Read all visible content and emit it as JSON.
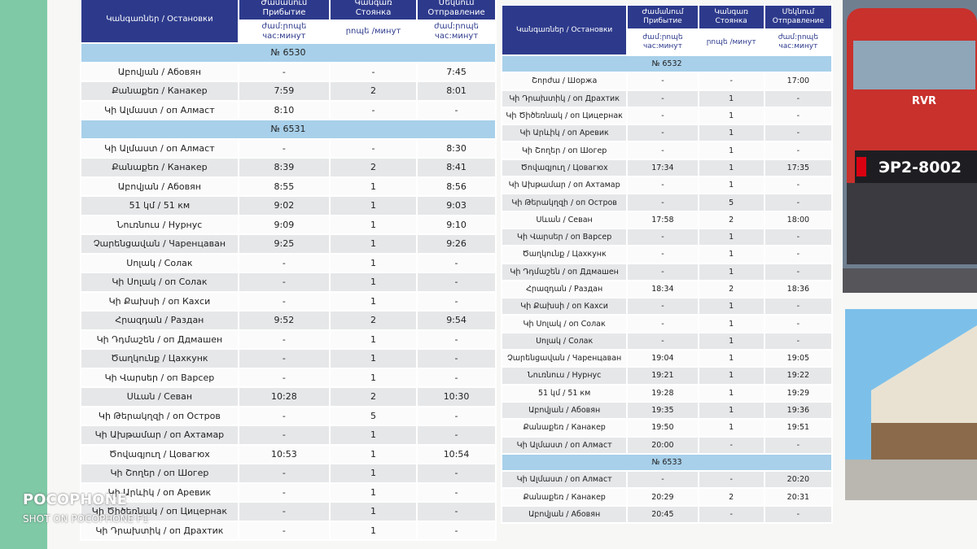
{
  "tables": [
    {
      "header": [
        [
          "Կանգառներ / Остановки"
        ],
        [
          "Ժամանում",
          "Прибытие"
        ],
        [
          "Կանգառ",
          "Стоянка"
        ],
        [
          "Մեկնում",
          "Отправление"
        ]
      ],
      "subheader": [
        [
          "ժամ:րոպե",
          "час:минут"
        ],
        [
          "րոպե /минут"
        ],
        [
          "ժամ:րոպե",
          "час:минут"
        ]
      ],
      "sections": [
        {
          "train": "№ 6530",
          "rows": [
            [
              "Աբովյան / Абовян",
              "-",
              "-",
              "7:45"
            ],
            [
              "Քանաքեռ / Канакер",
              "7:59",
              "2",
              "8:01"
            ],
            [
              "Կի Ալմաստ / оп Алмаст",
              "8:10",
              "-",
              "-"
            ]
          ]
        },
        {
          "train": "№ 6531",
          "rows": [
            [
              "Կի Ալմաստ / оп Алмаст",
              "-",
              "-",
              "8:30"
            ],
            [
              "Քանաքեռ / Канакер",
              "8:39",
              "2",
              "8:41"
            ],
            [
              "Աբովյան / Абовян",
              "8:55",
              "1",
              "8:56"
            ],
            [
              "51 կմ / 51 км",
              "9:02",
              "1",
              "9:03"
            ],
            [
              "Նուռնուս / Нурнус",
              "9:09",
              "1",
              "9:10"
            ],
            [
              "Չարենցավան / Чаренцаван",
              "9:25",
              "1",
              "9:26"
            ],
            [
              "Սոլակ / Солак",
              "-",
              "1",
              "-"
            ],
            [
              "Կի Սոլակ / оп Солак",
              "-",
              "1",
              "-"
            ],
            [
              "Կի Քախսի / оп Кахси",
              "-",
              "1",
              "-"
            ],
            [
              "Հրազդան / Раздан",
              "9:52",
              "2",
              "9:54"
            ],
            [
              "Կի Դդմաշեն / оп Ддмашен",
              "-",
              "1",
              "-"
            ],
            [
              "Ծաղկունք / Цахкунк",
              "-",
              "1",
              "-"
            ],
            [
              "Կի Վարսեր / оп Варсер",
              "-",
              "1",
              "-"
            ],
            [
              "Սևան / Севан",
              "10:28",
              "2",
              "10:30"
            ],
            [
              "Կի Թերակղզի / оп Остров",
              "-",
              "5",
              "-"
            ],
            [
              "Կի Ախթամար / оп Ахтамар",
              "-",
              "1",
              "-"
            ],
            [
              "Ծովագյուղ / Цовагюх",
              "10:53",
              "1",
              "10:54"
            ],
            [
              "Կի Շողեր / оп Шогер",
              "-",
              "1",
              "-"
            ],
            [
              "Կի Արևիկ / оп Аревик",
              "-",
              "1",
              "-"
            ],
            [
              "Կի Ծիծեռնակ / оп Цицернак",
              "-",
              "1",
              "-"
            ],
            [
              "Կի Դրախտիկ / оп Драхтик",
              "-",
              "1",
              "-"
            ]
          ]
        }
      ]
    },
    {
      "header": [
        [
          "Կանգառներ / Остановки"
        ],
        [
          "Ժամանում",
          "Прибытие"
        ],
        [
          "Կանգառ",
          "Стоянка"
        ],
        [
          "Մեկնում",
          "Отправление"
        ]
      ],
      "subheader": [
        [
          "ժամ:րոպե",
          "час:минут"
        ],
        [
          "րոպե /минут"
        ],
        [
          "ժամ:րոպե",
          "час:минут"
        ]
      ],
      "sections": [
        {
          "train": "№ 6532",
          "rows": [
            [
              "Շորժա / Шоржа",
              "-",
              "-",
              "17:00"
            ],
            [
              "Կի Դրախտիկ / оп Драхтик",
              "-",
              "1",
              "-"
            ],
            [
              "Կի Ծիծեռնակ / оп Цицернак",
              "-",
              "1",
              "-"
            ],
            [
              "Կի Արևիկ / оп Аревик",
              "-",
              "1",
              "-"
            ],
            [
              "Կի Շողեր / оп Шогер",
              "-",
              "1",
              "-"
            ],
            [
              "Ծովագյուղ / Цовагюх",
              "17:34",
              "1",
              "17:35"
            ],
            [
              "Կի Ախթամար / оп Ахтамар",
              "-",
              "1",
              "-"
            ],
            [
              "Կի Թերակղզի / оп Остров",
              "-",
              "5",
              "-"
            ],
            [
              "Սևան / Севан",
              "17:58",
              "2",
              "18:00"
            ],
            [
              "Կի Վարսեր / оп Варсер",
              "-",
              "1",
              "-"
            ],
            [
              "Ծաղկունք / Цахкунк",
              "-",
              "1",
              "-"
            ],
            [
              "Կի Դդմաշեն / оп Ддмашен",
              "-",
              "1",
              "-"
            ],
            [
              "Հրազդան / Раздан",
              "18:34",
              "2",
              "18:36"
            ],
            [
              "Կի Քախսի / оп Кахси",
              "-",
              "1",
              "-"
            ],
            [
              "Կի Սոլակ / оп Солак",
              "-",
              "1",
              "-"
            ],
            [
              "Սոլակ / Солак",
              "-",
              "1",
              "-"
            ],
            [
              "Չարենցավան / Чаренцаван",
              "19:04",
              "1",
              "19:05"
            ],
            [
              "Նուռնուս / Нурнус",
              "19:21",
              "1",
              "19:22"
            ],
            [
              "51 կմ / 51 км",
              "19:28",
              "1",
              "19:29"
            ],
            [
              "Աբովյան / Абовян",
              "19:35",
              "1",
              "19:36"
            ],
            [
              "Քանաքեռ / Канакер",
              "19:50",
              "1",
              "19:51"
            ],
            [
              "Կի Ալմաստ / оп Алмаст",
              "20:00",
              "-",
              "-"
            ]
          ]
        },
        {
          "train": "№ 6533",
          "rows": [
            [
              "Կի Ալմաստ / оп Алмаст",
              "-",
              "-",
              "20:20"
            ],
            [
              "Քանաքեռ / Канакер",
              "20:29",
              "2",
              "20:31"
            ],
            [
              "Աբովյան / Абовян",
              "20:45",
              "-",
              "-"
            ]
          ]
        }
      ]
    }
  ],
  "train_logo": "RVR",
  "train_plate": "ЭР2-8002",
  "watermark": {
    "brand": "POCOPHONE",
    "caption": "SHOT ON POCOPHONE F1"
  }
}
